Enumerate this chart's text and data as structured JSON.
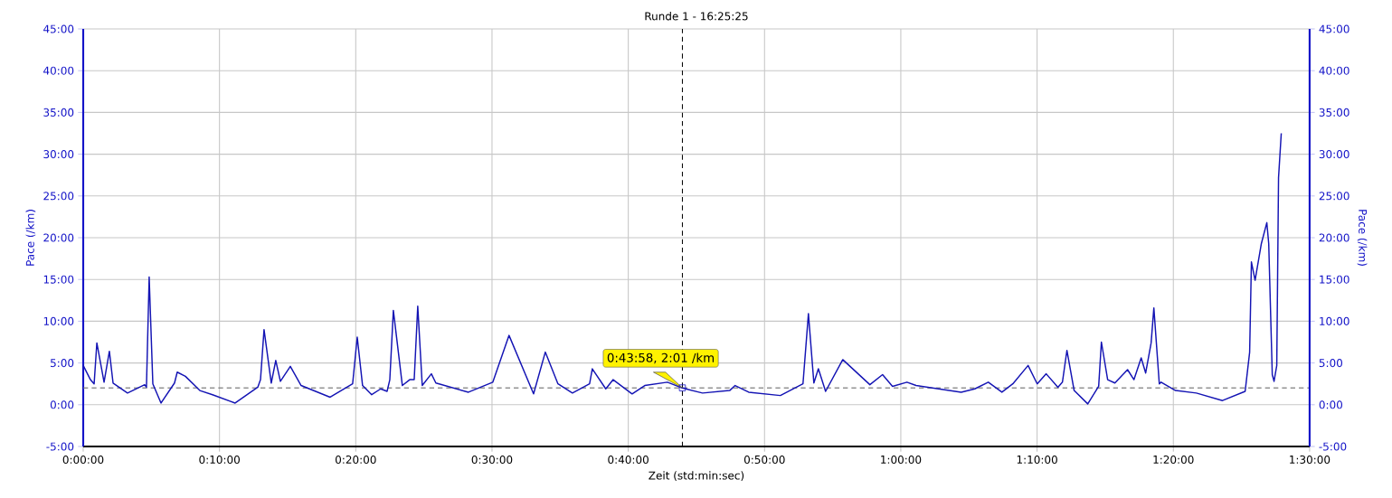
{
  "chart_data": {
    "type": "line",
    "title": "Runde 1 - 16:25:25",
    "xlabel": "Zeit (std:min:sec)",
    "ylabel": "Pace (/km)",
    "y2label": "Pace (/km)",
    "xlim": [
      0,
      90
    ],
    "xticks": [
      {
        "value": 0,
        "label": "0:00:00"
      },
      {
        "value": 10,
        "label": "0:10:00"
      },
      {
        "value": 20,
        "label": "0:20:00"
      },
      {
        "value": 30,
        "label": "0:30:00"
      },
      {
        "value": 40,
        "label": "0:40:00"
      },
      {
        "value": 50,
        "label": "0:50:00"
      },
      {
        "value": 60,
        "label": "1:00:00"
      },
      {
        "value": 70,
        "label": "1:10:00"
      },
      {
        "value": 80,
        "label": "1:20:00"
      },
      {
        "value": 90,
        "label": "1:30:00"
      }
    ],
    "ylim": [
      -5,
      45
    ],
    "yticks": [
      {
        "value": -5,
        "label": "-5:00"
      },
      {
        "value": 0,
        "label": "0:00"
      },
      {
        "value": 5,
        "label": "5:00"
      },
      {
        "value": 10,
        "label": "10:00"
      },
      {
        "value": 15,
        "label": "15:00"
      },
      {
        "value": 20,
        "label": "20:00"
      },
      {
        "value": 25,
        "label": "25:00"
      },
      {
        "value": 30,
        "label": "30:00"
      },
      {
        "value": 35,
        "label": "35:00"
      },
      {
        "value": 40,
        "label": "40:00"
      },
      {
        "value": 45,
        "label": "45:00"
      }
    ],
    "y2lim": [
      -5,
      45
    ],
    "y2ticks": [
      {
        "value": -5,
        "label": "-5:00"
      },
      {
        "value": 0,
        "label": "0:00"
      },
      {
        "value": 5,
        "label": "5:00"
      },
      {
        "value": 10,
        "label": "10:00"
      },
      {
        "value": 15,
        "label": "15:00"
      },
      {
        "value": 20,
        "label": "20:00"
      },
      {
        "value": 25,
        "label": "25:00"
      },
      {
        "value": 30,
        "label": "30:00"
      },
      {
        "value": 35,
        "label": "35:00"
      },
      {
        "value": 40,
        "label": "40:00"
      },
      {
        "value": 45,
        "label": "45:00"
      }
    ],
    "grid": true,
    "series": [
      {
        "color": "#1414b4",
        "x": [
          0,
          0.53,
          0.8,
          1.0,
          1.53,
          1.92,
          2.19,
          3.25,
          4.51,
          4.64,
          4.84,
          5.11,
          5.71,
          6.7,
          6.9,
          7.5,
          8.56,
          9.49,
          11.15,
          12.81,
          13.01,
          13.27,
          13.8,
          14.13,
          14.47,
          15.2,
          15.99,
          18.12,
          19.77,
          20.11,
          20.5,
          21.17,
          21.83,
          22.3,
          22.5,
          22.76,
          23.42,
          23.96,
          24.29,
          24.55,
          24.88,
          25.55,
          25.88,
          28.27,
          30.06,
          31.25,
          33.05,
          33.91,
          34.84,
          35.9,
          37.16,
          37.36,
          38.35,
          38.89,
          40.28,
          41.21,
          42.87,
          43.97,
          45.45,
          47.44,
          47.84,
          48.84,
          51.16,
          52.82,
          53.22,
          53.62,
          53.95,
          54.48,
          55.74,
          57.73,
          58.66,
          59.39,
          60.45,
          61.12,
          64.43,
          65.43,
          66.42,
          67.42,
          68.22,
          69.34,
          70.01,
          70.67,
          71.53,
          71.86,
          72.19,
          72.72,
          73.72,
          74.52,
          74.72,
          75.18,
          75.71,
          76.64,
          77.11,
          77.64,
          77.97,
          78.37,
          78.57,
          78.97,
          79.1,
          80.16,
          81.69,
          83.61,
          85.27,
          85.6,
          85.73,
          86.0,
          86.46,
          86.86,
          87.0,
          87.26,
          87.39,
          87.59,
          87.72,
          87.92
        ],
        "values": [
          4.7,
          3.0,
          2.5,
          7.4,
          2.7,
          6.4,
          2.6,
          1.4,
          2.4,
          2.1,
          15.3,
          2.5,
          0.2,
          2.6,
          3.9,
          3.4,
          1.7,
          1.2,
          0.2,
          2.1,
          3.0,
          9.0,
          2.6,
          5.3,
          2.8,
          4.6,
          2.3,
          0.9,
          2.5,
          8.1,
          2.3,
          1.2,
          1.9,
          1.6,
          3.0,
          11.3,
          2.3,
          3.0,
          3.0,
          11.8,
          2.3,
          3.7,
          2.6,
          1.5,
          2.7,
          8.3,
          1.3,
          6.3,
          2.5,
          1.4,
          2.5,
          4.3,
          1.9,
          3.0,
          1.3,
          2.3,
          2.7,
          2.0,
          1.4,
          1.7,
          2.3,
          1.5,
          1.1,
          2.5,
          10.9,
          2.6,
          4.3,
          1.6,
          5.4,
          2.4,
          3.6,
          2.2,
          2.7,
          2.3,
          1.5,
          1.9,
          2.7,
          1.5,
          2.5,
          4.7,
          2.5,
          3.7,
          2.1,
          2.7,
          6.5,
          1.7,
          0.1,
          2.2,
          7.5,
          3.0,
          2.6,
          4.2,
          3.0,
          5.6,
          3.8,
          7.4,
          11.6,
          2.5,
          2.7,
          1.7,
          1.4,
          0.5,
          1.6,
          6.3,
          17.1,
          14.9,
          19.3,
          21.8,
          19.3,
          3.6,
          2.8,
          4.7,
          27.2,
          32.5
        ]
      }
    ],
    "ref_lines": [
      {
        "axis": "y",
        "value": 2.02,
        "color": "#707070",
        "line_style": "dashed"
      },
      {
        "axis": "x",
        "value": 43.97,
        "color": "#000000",
        "line_style": "dashed"
      }
    ],
    "annotations": [
      {
        "text": "0:43:58, 2:01 /km",
        "x": 43.97,
        "y": 2.02
      }
    ]
  }
}
